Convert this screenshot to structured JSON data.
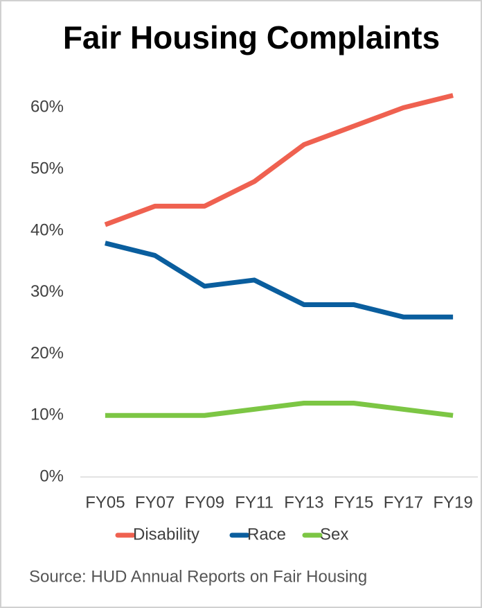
{
  "chart_data": {
    "type": "line",
    "title": "Fair Housing Complaints",
    "categories": [
      "FY05",
      "FY07",
      "FY09",
      "FY11",
      "FY13",
      "FY15",
      "FY17",
      "FY19"
    ],
    "series": [
      {
        "name": "Disability",
        "color": "#ef6150",
        "values": [
          41,
          44,
          44,
          48,
          54,
          57,
          60,
          62
        ]
      },
      {
        "name": "Race",
        "color": "#0a5e9e",
        "values": [
          38,
          36,
          31,
          32,
          28,
          28,
          26,
          26
        ]
      },
      {
        "name": "Sex",
        "color": "#7cc644",
        "values": [
          10,
          10,
          10,
          11,
          12,
          12,
          11,
          10
        ]
      }
    ],
    "ylim": [
      0,
      65
    ],
    "yticks": [
      {
        "value": 0,
        "label": "0%"
      },
      {
        "value": 10,
        "label": "10%"
      },
      {
        "value": 20,
        "label": "20%"
      },
      {
        "value": 30,
        "label": "30%"
      },
      {
        "value": 40,
        "label": "40%"
      },
      {
        "value": 50,
        "label": "50%"
      },
      {
        "value": 60,
        "label": "60%"
      }
    ],
    "legend": "bottom",
    "source": "Source: HUD Annual Reports on Fair Housing"
  }
}
